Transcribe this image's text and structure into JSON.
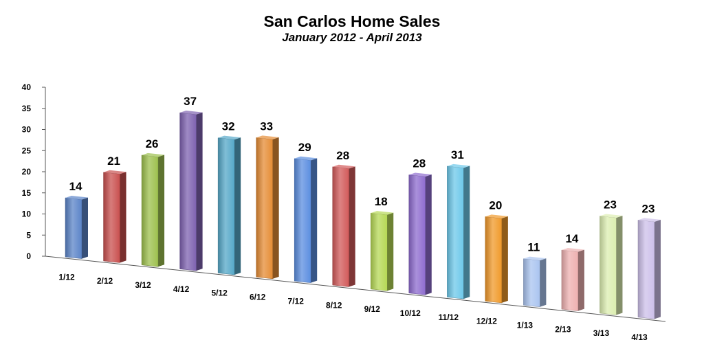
{
  "chart_data": {
    "type": "bar",
    "title": "San Carlos Home Sales",
    "subtitle": "January 2012 - April 2013",
    "xlabel": "",
    "ylabel": "",
    "ylim": [
      0,
      40
    ],
    "yticks": [
      0,
      5,
      10,
      15,
      20,
      25,
      30,
      35,
      40
    ],
    "grid": false,
    "categories": [
      "1/12",
      "2/12",
      "3/12",
      "4/12",
      "5/12",
      "6/12",
      "7/12",
      "8/12",
      "9/12",
      "10/12",
      "11/12",
      "12/12",
      "1/13",
      "2/13",
      "3/13",
      "4/13"
    ],
    "values": [
      14,
      21,
      26,
      37,
      32,
      33,
      29,
      28,
      18,
      28,
      31,
      20,
      11,
      14,
      23,
      23
    ],
    "colors": [
      "#5b84c8",
      "#c9504f",
      "#9dc04e",
      "#7e62b0",
      "#55a8c8",
      "#e58c35",
      "#5b8ee0",
      "#d25a5a",
      "#b6d855",
      "#8e6ccf",
      "#6dc8ea",
      "#f0992a",
      "#aac4f0",
      "#eeb0b0",
      "#dceeb0",
      "#cdc0ea"
    ]
  }
}
